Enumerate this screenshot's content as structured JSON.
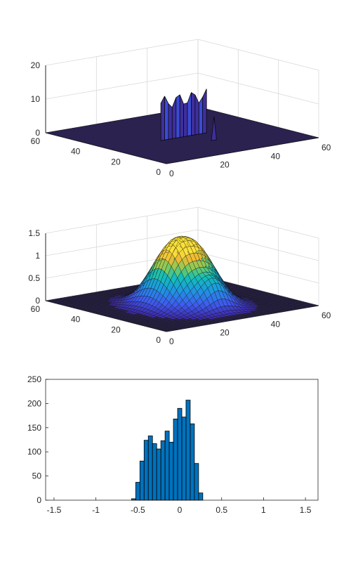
{
  "colors": {
    "axis": "#262626",
    "grid": "#d9d9d9",
    "bar_fill": "#0072bd",
    "bar_edge": "#000000",
    "surface_low": "#3a2a8a",
    "surface_high": "#f9e13a"
  },
  "chart_data": [
    {
      "type": "surface3d",
      "description_of_panel": "top",
      "x_ticks": [
        "0",
        "20",
        "40",
        "60"
      ],
      "y_ticks": [
        "0",
        "20",
        "40",
        "60"
      ],
      "z_ticks": [
        "0",
        "10",
        "20"
      ],
      "xlim": [
        0,
        60
      ],
      "ylim": [
        0,
        60
      ],
      "zlim": [
        0,
        20
      ],
      "grid": true,
      "features": [
        {
          "kind": "plateau",
          "x_range": [
            20,
            38
          ],
          "y_range": [
            28,
            30
          ],
          "height": 13
        },
        {
          "kind": "spike",
          "x": 33,
          "y": 18,
          "height": 7
        }
      ]
    },
    {
      "type": "surface3d",
      "description_of_panel": "middle",
      "x_ticks": [
        "0",
        "20",
        "40",
        "60"
      ],
      "y_ticks": [
        "0",
        "20",
        "40",
        "60"
      ],
      "z_ticks": [
        "0",
        "0.5",
        "1",
        "1.5"
      ],
      "xlim": [
        0,
        60
      ],
      "ylim": [
        0,
        60
      ],
      "zlim": [
        0,
        1.5
      ],
      "grid": true,
      "colormap": "parula",
      "features": [
        {
          "kind": "peak",
          "x": 24,
          "y": 28,
          "height": 1.2
        },
        {
          "kind": "peak",
          "x": 34,
          "y": 28,
          "height": 1.1
        },
        {
          "kind": "bump",
          "x": 30,
          "y": 14,
          "height": 0.35
        }
      ]
    },
    {
      "type": "bar",
      "description_of_panel": "histogram",
      "x_ticks": [
        "-1.5",
        "-1",
        "-0.5",
        "0",
        "0.5",
        "1",
        "1.5"
      ],
      "y_ticks": [
        "0",
        "50",
        "100",
        "150",
        "200",
        "250"
      ],
      "xlim": [
        -1.6,
        1.65
      ],
      "ylim": [
        0,
        250
      ],
      "bin_width": 0.05,
      "x": [
        -0.55,
        -0.5,
        -0.45,
        -0.4,
        -0.35,
        -0.3,
        -0.25,
        -0.2,
        -0.15,
        -0.1,
        -0.05,
        0.0,
        0.05,
        0.1,
        0.15,
        0.2,
        0.25,
        0.3
      ],
      "values": [
        3,
        37,
        81,
        124,
        133,
        117,
        106,
        123,
        143,
        120,
        168,
        190,
        172,
        207,
        158,
        76,
        15,
        0
      ],
      "grid": false
    }
  ]
}
